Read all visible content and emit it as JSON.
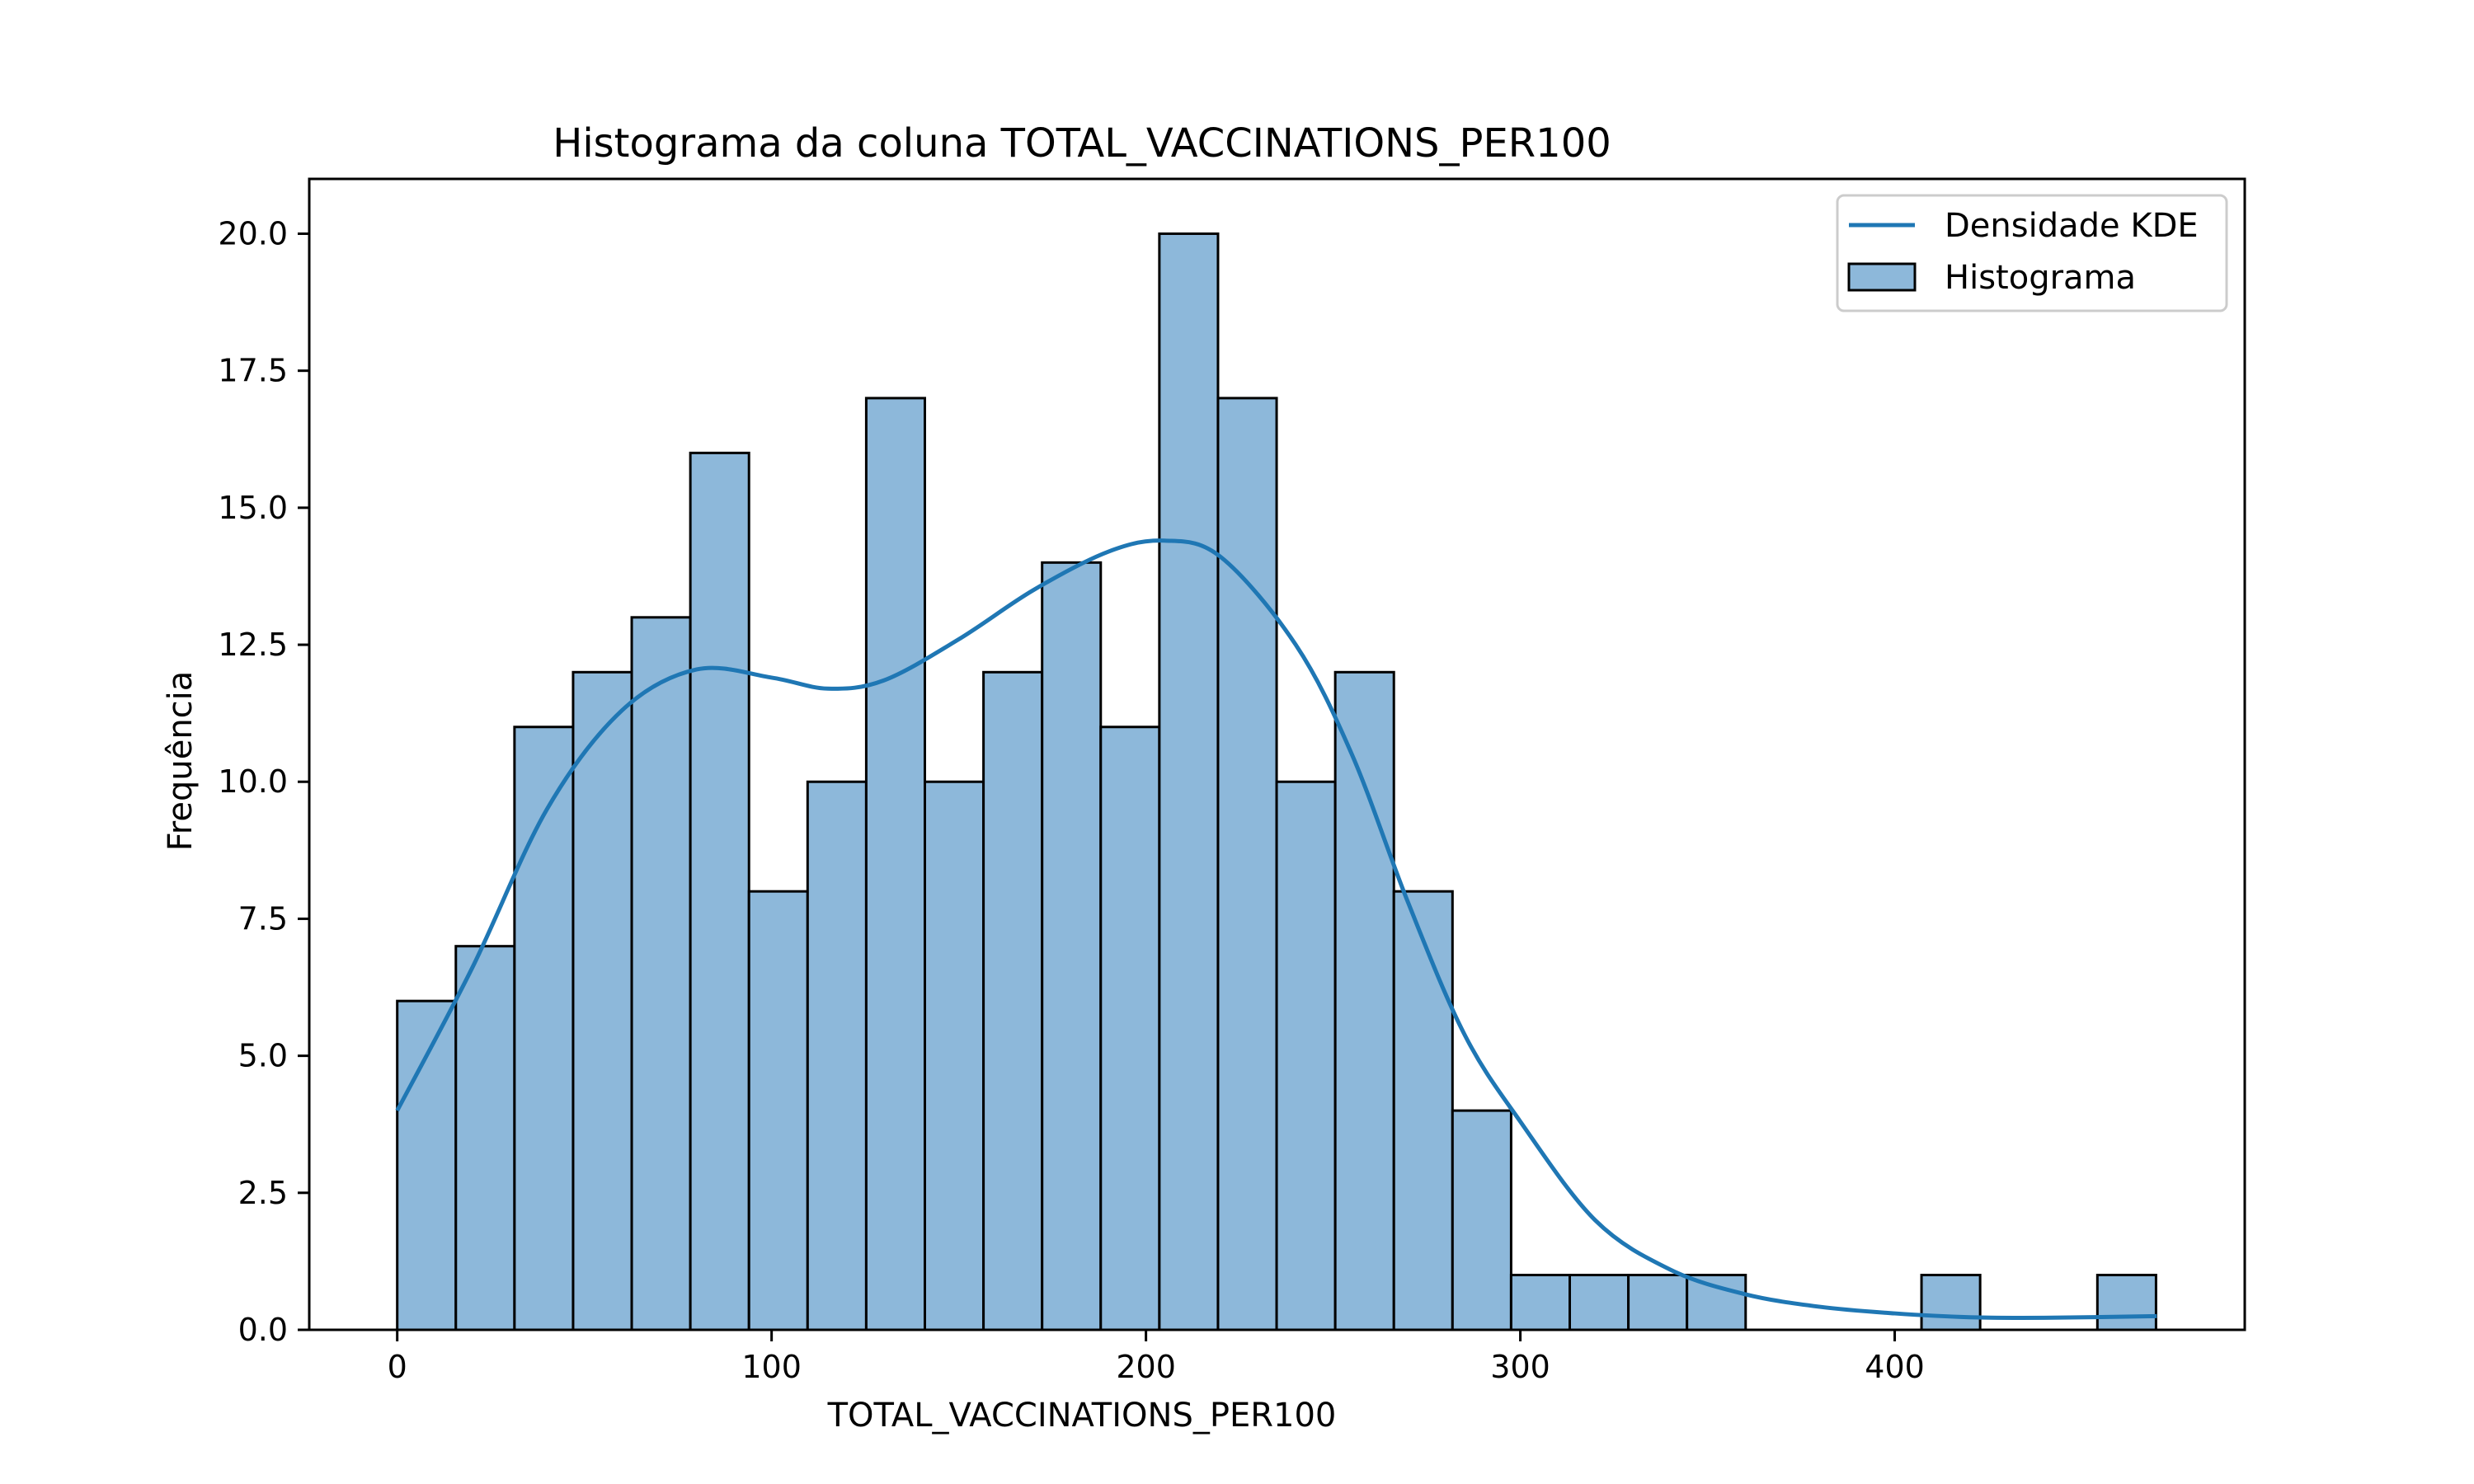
{
  "chart_data": {
    "type": "bar",
    "title": "Histograma da coluna TOTAL_VACCINATIONS_PER100",
    "xlabel": "TOTAL_VACCINATIONS_PER100",
    "ylabel": "Frequência",
    "xlim": [
      -23.5,
      493.5
    ],
    "ylim": [
      0,
      21
    ],
    "xticks": [
      0,
      100,
      200,
      300,
      400
    ],
    "xtick_labels": [
      "0",
      "100",
      "200",
      "300",
      "400"
    ],
    "yticks": [
      0,
      2.5,
      5,
      7.5,
      10,
      12.5,
      15,
      17.5,
      20
    ],
    "ytick_labels": [
      "0.0",
      "2.5",
      "5.0",
      "7.5",
      "10.0",
      "12.5",
      "15.0",
      "17.5",
      "20.0"
    ],
    "bin_start": 0,
    "bin_width": 15.66,
    "counts": [
      6,
      7,
      11,
      12,
      13,
      16,
      8,
      10,
      17,
      10,
      12,
      14,
      11,
      20,
      17,
      10,
      12,
      8,
      4,
      1,
      1,
      1,
      1,
      0,
      0,
      0,
      1,
      0,
      0,
      1
    ],
    "kde": {
      "x": [
        0,
        20,
        40,
        60,
        80,
        100,
        115,
        130,
        150,
        170,
        190,
        205,
        220,
        240,
        255,
        270,
        285,
        300,
        320,
        340,
        360,
        380,
        400,
        420,
        440,
        470
      ],
      "y": [
        4.0,
        6.6,
        9.5,
        11.3,
        12.05,
        11.9,
        11.7,
        11.85,
        12.6,
        13.5,
        14.2,
        14.4,
        14.1,
        12.5,
        10.5,
        7.8,
        5.4,
        3.8,
        2.0,
        1.1,
        0.65,
        0.42,
        0.3,
        0.23,
        0.22,
        0.25
      ]
    },
    "grid": false,
    "legend": {
      "placement": "top-right",
      "entries": [
        "Densidade KDE",
        "Histograma"
      ]
    },
    "colors": {
      "bar_fill": "#8db8da",
      "bar_edge": "#000000",
      "kde_line": "#1f77b4"
    }
  }
}
